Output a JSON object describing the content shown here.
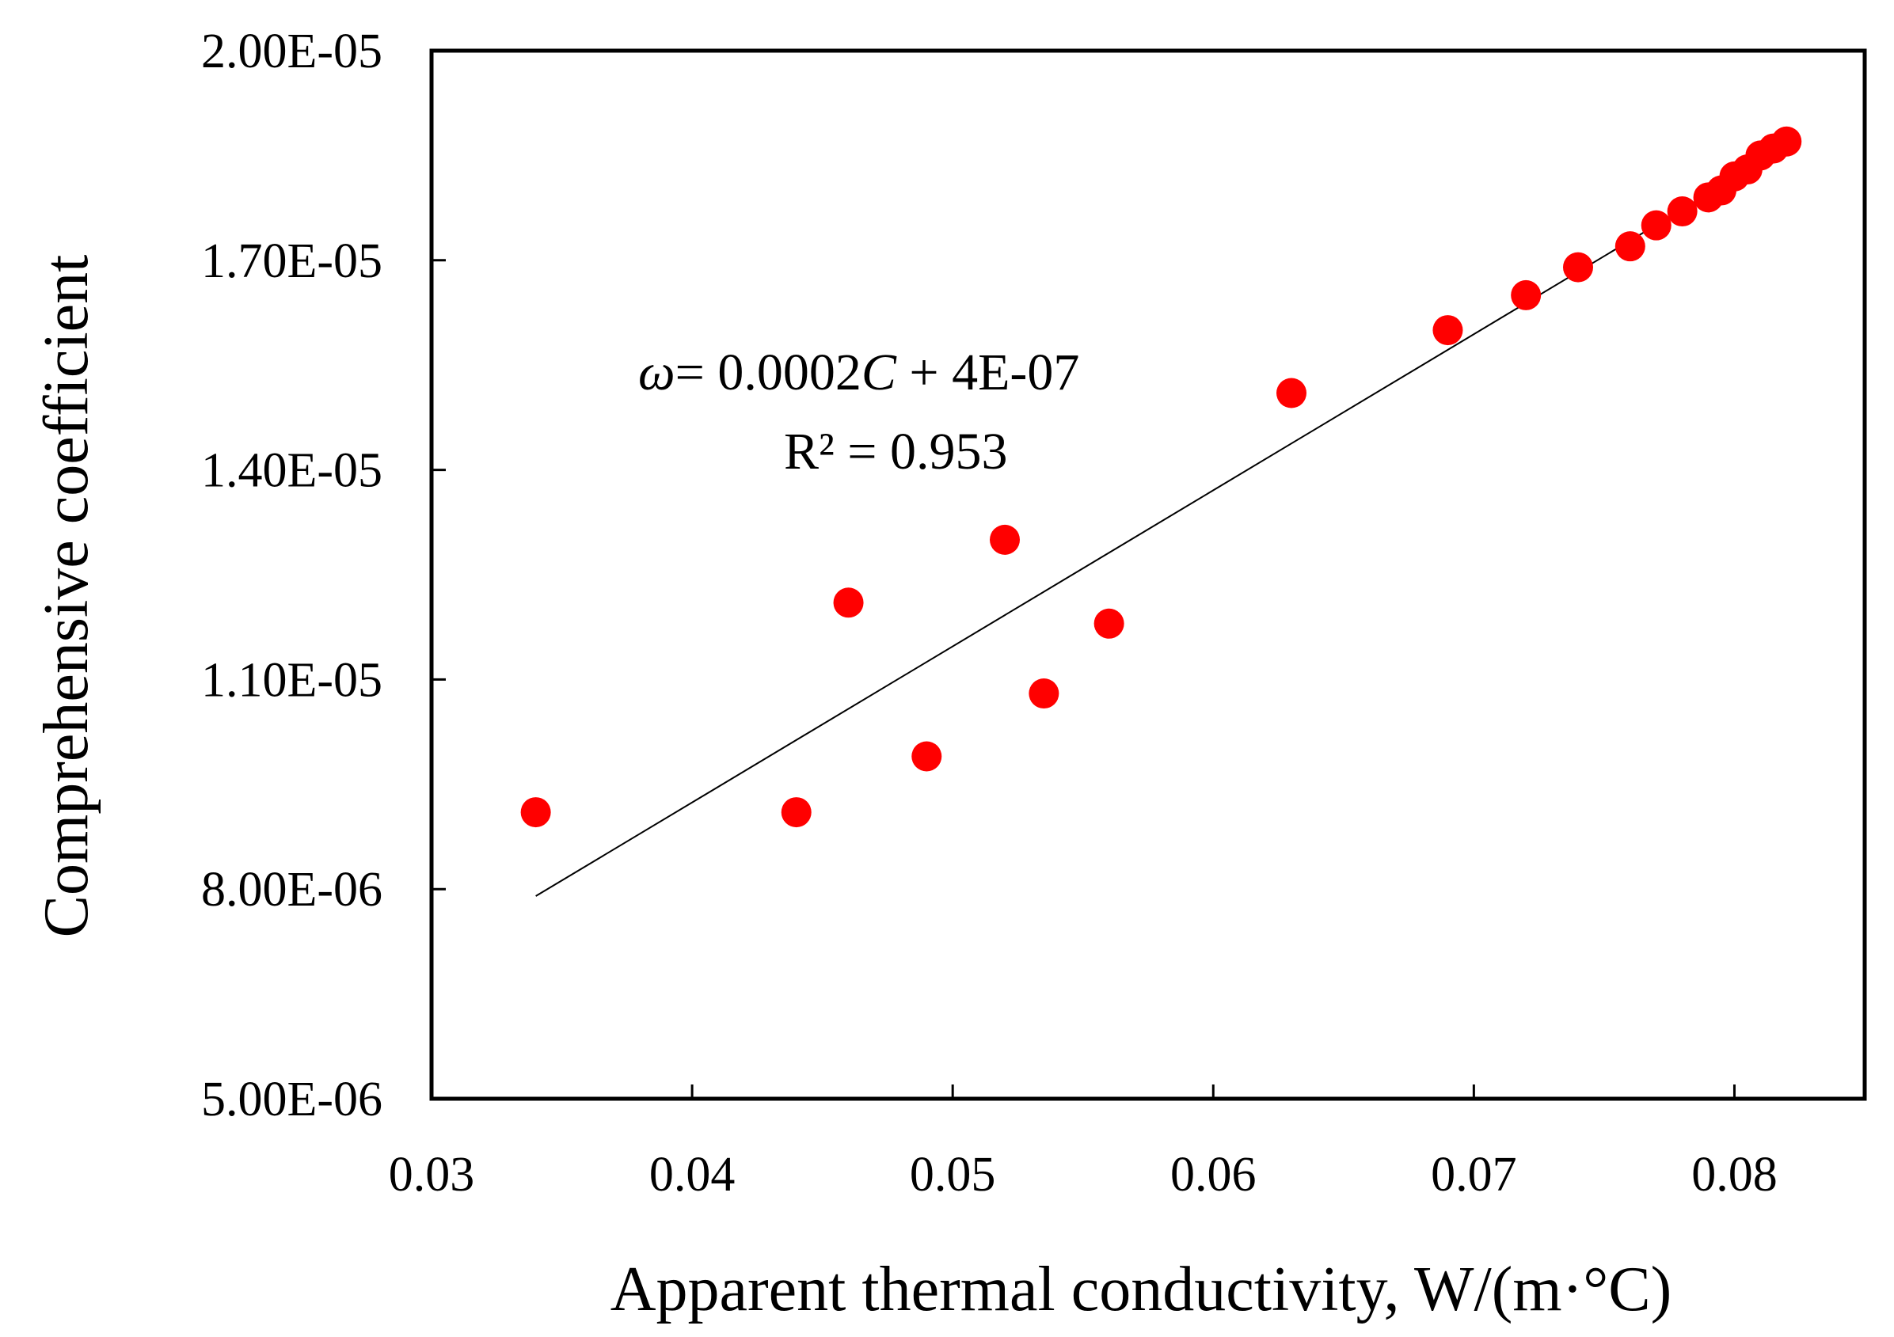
{
  "chart_data": {
    "type": "scatter",
    "title": "",
    "xlabel": "Apparent thermal conductivity, W/(m·°C)",
    "ylabel": "Comprehensive coefficient",
    "xlim": [
      0.03,
      0.085
    ],
    "ylim": [
      5e-06,
      2e-05
    ],
    "x_ticks": [
      0.03,
      0.04,
      0.05,
      0.06,
      0.07,
      0.08
    ],
    "x_tick_labels": [
      "0.03",
      "0.04",
      "0.05",
      "0.06",
      "0.07",
      "0.08"
    ],
    "y_ticks": [
      5e-06,
      8e-06,
      1.1e-05,
      1.4e-05,
      1.7e-05,
      2e-05
    ],
    "y_tick_labels": [
      "5.00E-06",
      "8.00E-06",
      "1.10E-05",
      "1.40E-05",
      "1.70E-05",
      "2.00E-05"
    ],
    "grid": false,
    "marker_color": "#ff0000",
    "line_color": "#000000",
    "series": [
      {
        "name": "data",
        "x": [
          0.034,
          0.044,
          0.046,
          0.049,
          0.052,
          0.0535,
          0.056,
          0.063,
          0.069,
          0.072,
          0.074,
          0.076,
          0.077,
          0.078,
          0.079,
          0.0795,
          0.08,
          0.0805,
          0.081,
          0.0815,
          0.082
        ],
        "y": [
          9.1e-06,
          9.1e-06,
          1.21e-05,
          9.9e-06,
          1.3e-05,
          1.08e-05,
          1.18e-05,
          1.51e-05,
          1.6e-05,
          1.65e-05,
          1.69e-05,
          1.72e-05,
          1.75e-05,
          1.77e-05,
          1.79e-05,
          1.8e-05,
          1.82e-05,
          1.83e-05,
          1.85e-05,
          1.86e-05,
          1.87e-05
        ]
      }
    ],
    "trendline": {
      "x": [
        0.034,
        0.0819
      ],
      "y": [
        7.9e-06,
        1.86e-05
      ]
    },
    "annotation": {
      "line1_var": "ω",
      "line1_eq": "= 0.0002",
      "line1_c": "C",
      "line1_rest": " + 4E-07",
      "line2": "R² = 0.953"
    }
  }
}
